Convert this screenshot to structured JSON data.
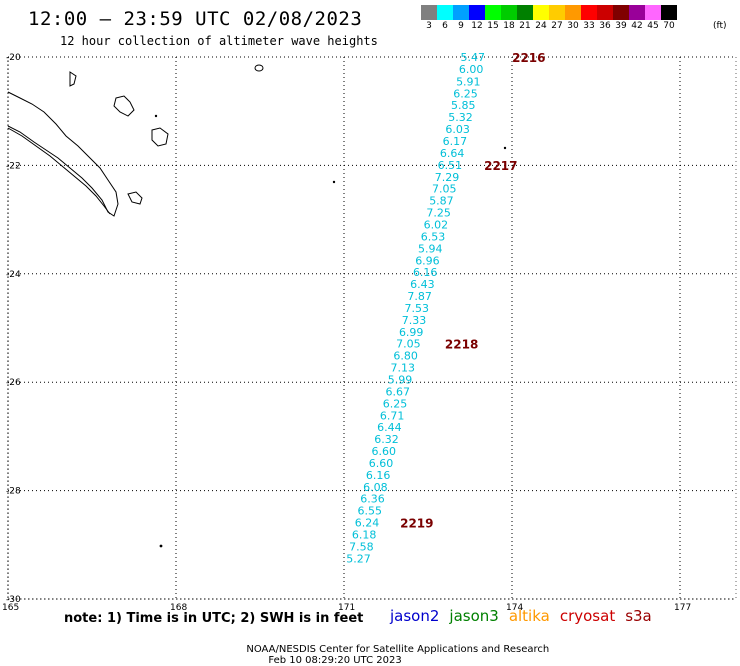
{
  "header": {
    "title": "12:00 – 23:59 UTC 02/08/2023",
    "subtitle": "12 hour collection of altimeter wave heights"
  },
  "colorbar": {
    "unit": "(ft)",
    "bins": [
      {
        "label": "3",
        "color": "#808080"
      },
      {
        "label": "6",
        "color": "#00ffff"
      },
      {
        "label": "9",
        "color": "#00a0ff"
      },
      {
        "label": "12",
        "color": "#0000ff"
      },
      {
        "label": "15",
        "color": "#00ff00"
      },
      {
        "label": "18",
        "color": "#00cc00"
      },
      {
        "label": "21",
        "color": "#008000"
      },
      {
        "label": "24",
        "color": "#ffff00"
      },
      {
        "label": "27",
        "color": "#ffcc00"
      },
      {
        "label": "30",
        "color": "#ff9900"
      },
      {
        "label": "33",
        "color": "#ff0000"
      },
      {
        "label": "36",
        "color": "#cc0000"
      },
      {
        "label": "39",
        "color": "#800000"
      },
      {
        "label": "42",
        "color": "#990099"
      },
      {
        "label": "45",
        "color": "#ff66ff"
      },
      {
        "label": "70",
        "color": "#000000"
      }
    ]
  },
  "map": {
    "lat_range": [
      -30,
      -20
    ],
    "lon_range": [
      165,
      178
    ],
    "lat_labels": [
      "-20",
      "-22",
      "-24",
      "-26",
      "-28",
      "-30"
    ],
    "lon_labels": [
      "165",
      "168",
      "171",
      "174",
      "177"
    ],
    "grid": true,
    "observation_color": "#00bfd8",
    "time_color": "#7a0000"
  },
  "observations": [
    {
      "lat": -20.0,
      "lon": 173.3,
      "swh": "5.47"
    },
    {
      "lat": -20.22,
      "lon": 173.27,
      "swh": "6.00"
    },
    {
      "lat": -20.45,
      "lon": 173.22,
      "swh": "5.91"
    },
    {
      "lat": -20.67,
      "lon": 173.17,
      "swh": "6.25"
    },
    {
      "lat": -20.89,
      "lon": 173.13,
      "swh": "5.85"
    },
    {
      "lat": -21.11,
      "lon": 173.08,
      "swh": "5.32"
    },
    {
      "lat": -21.33,
      "lon": 173.03,
      "swh": "6.03"
    },
    {
      "lat": -21.55,
      "lon": 172.98,
      "swh": "6.17"
    },
    {
      "lat": -21.77,
      "lon": 172.93,
      "swh": "6.64"
    },
    {
      "lat": -21.99,
      "lon": 172.89,
      "swh": "6.51"
    },
    {
      "lat": -22.21,
      "lon": 172.84,
      "swh": "7.29"
    },
    {
      "lat": -22.43,
      "lon": 172.79,
      "swh": "7.05"
    },
    {
      "lat": -22.65,
      "lon": 172.74,
      "swh": "5.87"
    },
    {
      "lat": -22.87,
      "lon": 172.69,
      "swh": "7.25"
    },
    {
      "lat": -23.09,
      "lon": 172.64,
      "swh": "6.02"
    },
    {
      "lat": -23.31,
      "lon": 172.59,
      "swh": "6.53"
    },
    {
      "lat": -23.53,
      "lon": 172.54,
      "swh": "5.94"
    },
    {
      "lat": -23.75,
      "lon": 172.49,
      "swh": "6.96"
    },
    {
      "lat": -23.97,
      "lon": 172.45,
      "swh": "6.16"
    },
    {
      "lat": -24.19,
      "lon": 172.4,
      "swh": "6.43"
    },
    {
      "lat": -24.41,
      "lon": 172.35,
      "swh": "7.87"
    },
    {
      "lat": -24.63,
      "lon": 172.3,
      "swh": "7.53"
    },
    {
      "lat": -24.85,
      "lon": 172.25,
      "swh": "7.33"
    },
    {
      "lat": -25.07,
      "lon": 172.2,
      "swh": "6.99"
    },
    {
      "lat": -25.29,
      "lon": 172.15,
      "swh": "7.05"
    },
    {
      "lat": -25.51,
      "lon": 172.1,
      "swh": "6.80"
    },
    {
      "lat": -25.73,
      "lon": 172.05,
      "swh": "7.13"
    },
    {
      "lat": -25.95,
      "lon": 172.0,
      "swh": "5.99"
    },
    {
      "lat": -26.17,
      "lon": 171.96,
      "swh": "6.67"
    },
    {
      "lat": -26.39,
      "lon": 171.91,
      "swh": "6.25"
    },
    {
      "lat": -26.61,
      "lon": 171.86,
      "swh": "6.71"
    },
    {
      "lat": -26.83,
      "lon": 171.81,
      "swh": "6.44"
    },
    {
      "lat": -27.05,
      "lon": 171.76,
      "swh": "6.32"
    },
    {
      "lat": -27.27,
      "lon": 171.71,
      "swh": "6.60"
    },
    {
      "lat": -27.49,
      "lon": 171.66,
      "swh": "6.60"
    },
    {
      "lat": -27.71,
      "lon": 171.61,
      "swh": "6.16"
    },
    {
      "lat": -27.93,
      "lon": 171.56,
      "swh": "6.08"
    },
    {
      "lat": -28.15,
      "lon": 171.51,
      "swh": "6.36"
    },
    {
      "lat": -28.37,
      "lon": 171.46,
      "swh": "6.55"
    },
    {
      "lat": -28.59,
      "lon": 171.41,
      "swh": "6.24"
    },
    {
      "lat": -28.81,
      "lon": 171.36,
      "swh": "6.18"
    },
    {
      "lat": -29.03,
      "lon": 171.31,
      "swh": "7.58"
    },
    {
      "lat": -29.25,
      "lon": 171.26,
      "swh": "5.27"
    }
  ],
  "time_labels": [
    {
      "lat": -20.0,
      "lon": 174.3,
      "text": "2216"
    },
    {
      "lat": -21.99,
      "lon": 173.8,
      "text": "2217"
    },
    {
      "lat": -25.29,
      "lon": 173.1,
      "text": "2218"
    },
    {
      "lat": -28.59,
      "lon": 172.3,
      "text": "2219"
    }
  ],
  "note": "note: 1) Time is in UTC; 2) SWH is in feet",
  "satellites": [
    {
      "name": "jason2",
      "color": "#0000cc"
    },
    {
      "name": "jason3",
      "color": "#008000"
    },
    {
      "name": "altika",
      "color": "#ff9900"
    },
    {
      "name": "cryosat",
      "color": "#cc0000"
    },
    {
      "name": "s3a",
      "color": "#990000"
    }
  ],
  "footer": {
    "agency": "NOAA/NESDIS Center for Satellite Applications and Research",
    "timestamp": "Feb 10 08:29:20 UTC 2023"
  }
}
